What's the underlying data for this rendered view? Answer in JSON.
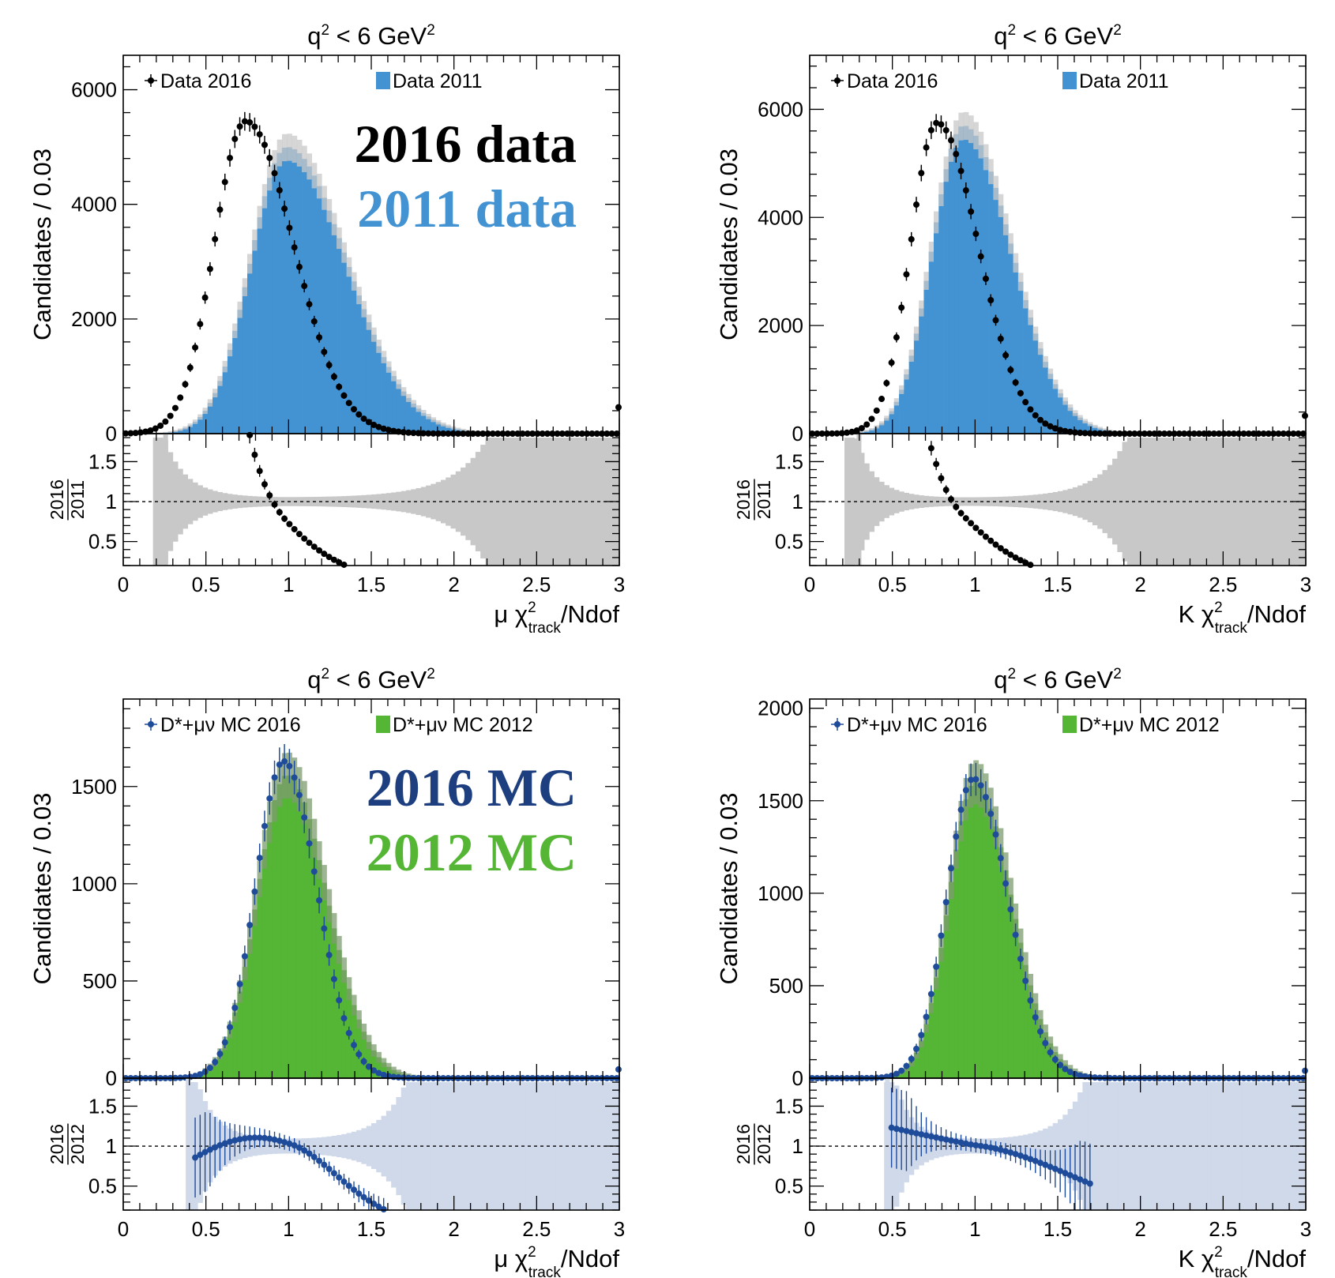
{
  "chart_data": [
    {
      "id": "top-left",
      "type": "bar",
      "title": {
        "base": "q",
        "sup": "2",
        "mid": " < 6 GeV",
        "sup2": "2"
      },
      "ylabel": "Candidates / 0.03",
      "xlabel": {
        "prefix": "μ χ",
        "sup": "2",
        "sub": "track",
        "suffix": "/Ndof"
      },
      "ylim": [
        0,
        6600
      ],
      "yticks": [
        0,
        2000,
        4000,
        6000
      ],
      "xlim": [
        0,
        3
      ],
      "xticks": [
        "0",
        "0.5",
        "1",
        "1.5",
        "2",
        "2.5",
        "3"
      ],
      "ratio_label": {
        "num": "2016",
        "den": "2011"
      },
      "ratio_ylim": [
        0.2,
        1.85
      ],
      "ratio_yticks": [
        "0.5",
        "1",
        "1.5"
      ],
      "legend": [
        {
          "marker": "point",
          "text": "Data 2016"
        },
        {
          "marker": "box",
          "text": "Data 2011"
        }
      ],
      "annotations": [
        {
          "text": "2016 data",
          "color": "#000000"
        },
        {
          "text": "2011 data",
          "color": "#4393d3"
        }
      ],
      "colors": {
        "hist": "#4393d3",
        "band": "#c8c8c8",
        "points": "#000000"
      },
      "ratio_band_color": "#c8c8c8",
      "ratio_points_color": "#000000",
      "ref_series": {
        "name": "Data 2011",
        "peak": 5000,
        "mode": 0.99,
        "wl": 0.22,
        "wr": 0.36
      },
      "cmp_series": {
        "name": "Data 2016",
        "peak": 5450,
        "mode": 0.74,
        "wl": 0.19,
        "wr": 0.29
      },
      "overflow_value": 460
    },
    {
      "id": "top-right",
      "type": "bar",
      "title": {
        "base": "q",
        "sup": "2",
        "mid": " < 6 GeV",
        "sup2": "2"
      },
      "ylabel": "Candidates / 0.03",
      "xlabel": {
        "prefix": "K χ",
        "sup": "2",
        "sub": "track",
        "suffix": "/Ndof"
      },
      "ylim": [
        0,
        7000
      ],
      "yticks": [
        0,
        2000,
        4000,
        6000
      ],
      "xlim": [
        0,
        3
      ],
      "xticks": [
        "0",
        "0.5",
        "1",
        "1.5",
        "2",
        "2.5",
        "3"
      ],
      "ratio_label": {
        "num": "2016",
        "den": "2011"
      },
      "ratio_ylim": [
        0.2,
        1.85
      ],
      "ratio_yticks": [
        "0.5",
        "1",
        "1.5"
      ],
      "legend": [
        {
          "marker": "point",
          "text": "Data 2016"
        },
        {
          "marker": "box",
          "text": "Data 2011"
        }
      ],
      "annotations": [],
      "colors": {
        "hist": "#4393d3",
        "band": "#c8c8c8",
        "points": "#000000"
      },
      "ratio_band_color": "#c8c8c8",
      "ratio_points_color": "#000000",
      "ref_series": {
        "name": "Data 2011",
        "peak": 5700,
        "mode": 0.93,
        "wl": 0.19,
        "wr": 0.29
      },
      "cmp_series": {
        "name": "Data 2016",
        "peak": 5750,
        "mode": 0.77,
        "wl": 0.16,
        "wr": 0.25
      },
      "overflow_value": 330
    },
    {
      "id": "bottom-left",
      "type": "bar",
      "title": {
        "base": "q",
        "sup": "2",
        "mid": " < 6 GeV",
        "sup2": "2"
      },
      "ylabel": "Candidates / 0.03",
      "xlabel": {
        "prefix": "μ χ",
        "sup": "2",
        "sub": "track",
        "suffix": "/Ndof"
      },
      "ylim": [
        0,
        1950
      ],
      "yticks": [
        0,
        500,
        1000,
        1500
      ],
      "xlim": [
        0,
        3
      ],
      "xticks": [
        "0",
        "0.5",
        "1",
        "1.5",
        "2",
        "2.5",
        "3"
      ],
      "ratio_label": {
        "num": "2016",
        "den": "2012"
      },
      "ratio_ylim": [
        0.2,
        1.85
      ],
      "ratio_yticks": [
        "0.5",
        "1",
        "1.5"
      ],
      "legend": [
        {
          "marker": "point",
          "text": "D*+μν MC 2016"
        },
        {
          "marker": "box",
          "text": "D*+μν MC 2012"
        }
      ],
      "annotations": [
        {
          "text": "2016 MC",
          "color": "#1d3f80"
        },
        {
          "text": "2012 MC",
          "color": "#55b535"
        }
      ],
      "colors": {
        "hist": "#55b535",
        "band": "#7d9c70",
        "points": "#1f4c9a"
      },
      "ratio_band_color": "#cfd9ea",
      "ratio_points_color": "#1f4c9a",
      "ref_series": {
        "name": "D*+μν MC 2012",
        "peak": 1560,
        "mode": 0.99,
        "wl": 0.18,
        "wr": 0.24
      },
      "cmp_series": {
        "name": "D*+μν MC 2016",
        "peak": 1630,
        "mode": 0.97,
        "wl": 0.17,
        "wr": 0.2
      },
      "overflow_value": 45
    },
    {
      "id": "bottom-right",
      "type": "bar",
      "title": {
        "base": "q",
        "sup": "2",
        "mid": " < 6 GeV",
        "sup2": "2"
      },
      "ylabel": "Candidates / 0.03",
      "xlabel": {
        "prefix": "K χ",
        "sup": "2",
        "sub": "track",
        "suffix": "/Ndof"
      },
      "ylim": [
        0,
        2050
      ],
      "yticks": [
        0,
        500,
        1000,
        1500,
        2000
      ],
      "xlim": [
        0,
        3
      ],
      "xticks": [
        "0",
        "0.5",
        "1",
        "1.5",
        "2",
        "2.5",
        "3"
      ],
      "ratio_label": {
        "num": "2016",
        "den": "2012"
      },
      "ratio_ylim": [
        0.2,
        1.85
      ],
      "ratio_yticks": [
        "0.5",
        "1",
        "1.5"
      ],
      "legend": [
        {
          "marker": "point",
          "text": "D*+μν MC 2016"
        },
        {
          "marker": "box",
          "text": "D*+μν MC 2012"
        }
      ],
      "annotations": [],
      "colors": {
        "hist": "#55b535",
        "band": "#7d9c70",
        "points": "#1f4c9a"
      },
      "ratio_band_color": "#cfd9ea",
      "ratio_points_color": "#1f4c9a",
      "ref_series": {
        "name": "D*+μν MC 2012",
        "peak": 1600,
        "mode": 1.0,
        "wl": 0.16,
        "wr": 0.22
      },
      "cmp_series": {
        "name": "D*+μν MC 2016",
        "peak": 1620,
        "mode": 0.99,
        "wl": 0.16,
        "wr": 0.21
      },
      "overflow_value": 40
    }
  ]
}
